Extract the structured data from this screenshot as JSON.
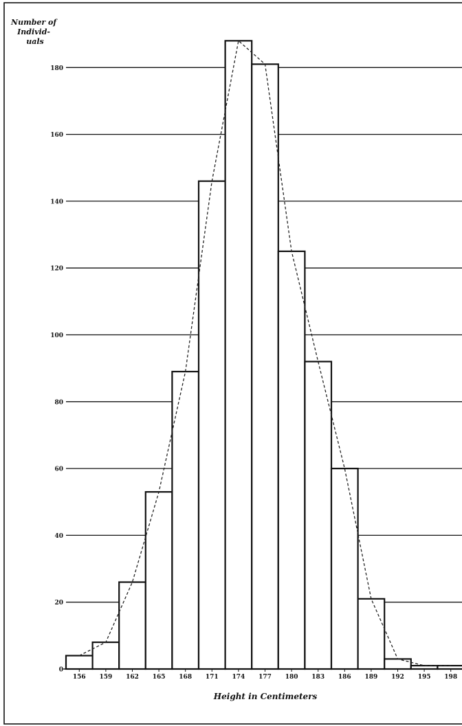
{
  "chart_data": {
    "type": "bar",
    "ylabel_lines": [
      "Number of",
      "Individ-",
      "uals"
    ],
    "xlabel": "Height in Centimeters",
    "categories": [
      "156",
      "159",
      "162",
      "165",
      "168",
      "171",
      "174",
      "177",
      "180",
      "183",
      "186",
      "189",
      "192",
      "195",
      "198"
    ],
    "values": [
      4,
      8,
      26,
      53,
      89,
      146,
      188,
      181,
      125,
      92,
      60,
      21,
      3,
      1,
      1
    ],
    "frequency_polygon": [
      [
        156,
        4
      ],
      [
        159,
        8
      ],
      [
        162,
        26
      ],
      [
        165,
        53
      ],
      [
        168,
        89
      ],
      [
        171,
        146
      ],
      [
        174,
        188
      ],
      [
        177,
        181
      ],
      [
        180,
        125
      ],
      [
        183,
        92
      ],
      [
        186,
        60
      ],
      [
        189,
        21
      ],
      [
        192,
        3
      ],
      [
        195,
        1
      ],
      [
        198,
        1
      ]
    ],
    "yticks": [
      20,
      40,
      60,
      80,
      100,
      120,
      140,
      160,
      180
    ],
    "ylim": [
      0,
      195
    ],
    "xlim": [
      154.5,
      199.5
    ],
    "grid": true,
    "colors": {
      "bar_fill": "#ffffff",
      "bar_stroke": "#111111",
      "grid": "#111111",
      "polygon": "#222222"
    }
  }
}
